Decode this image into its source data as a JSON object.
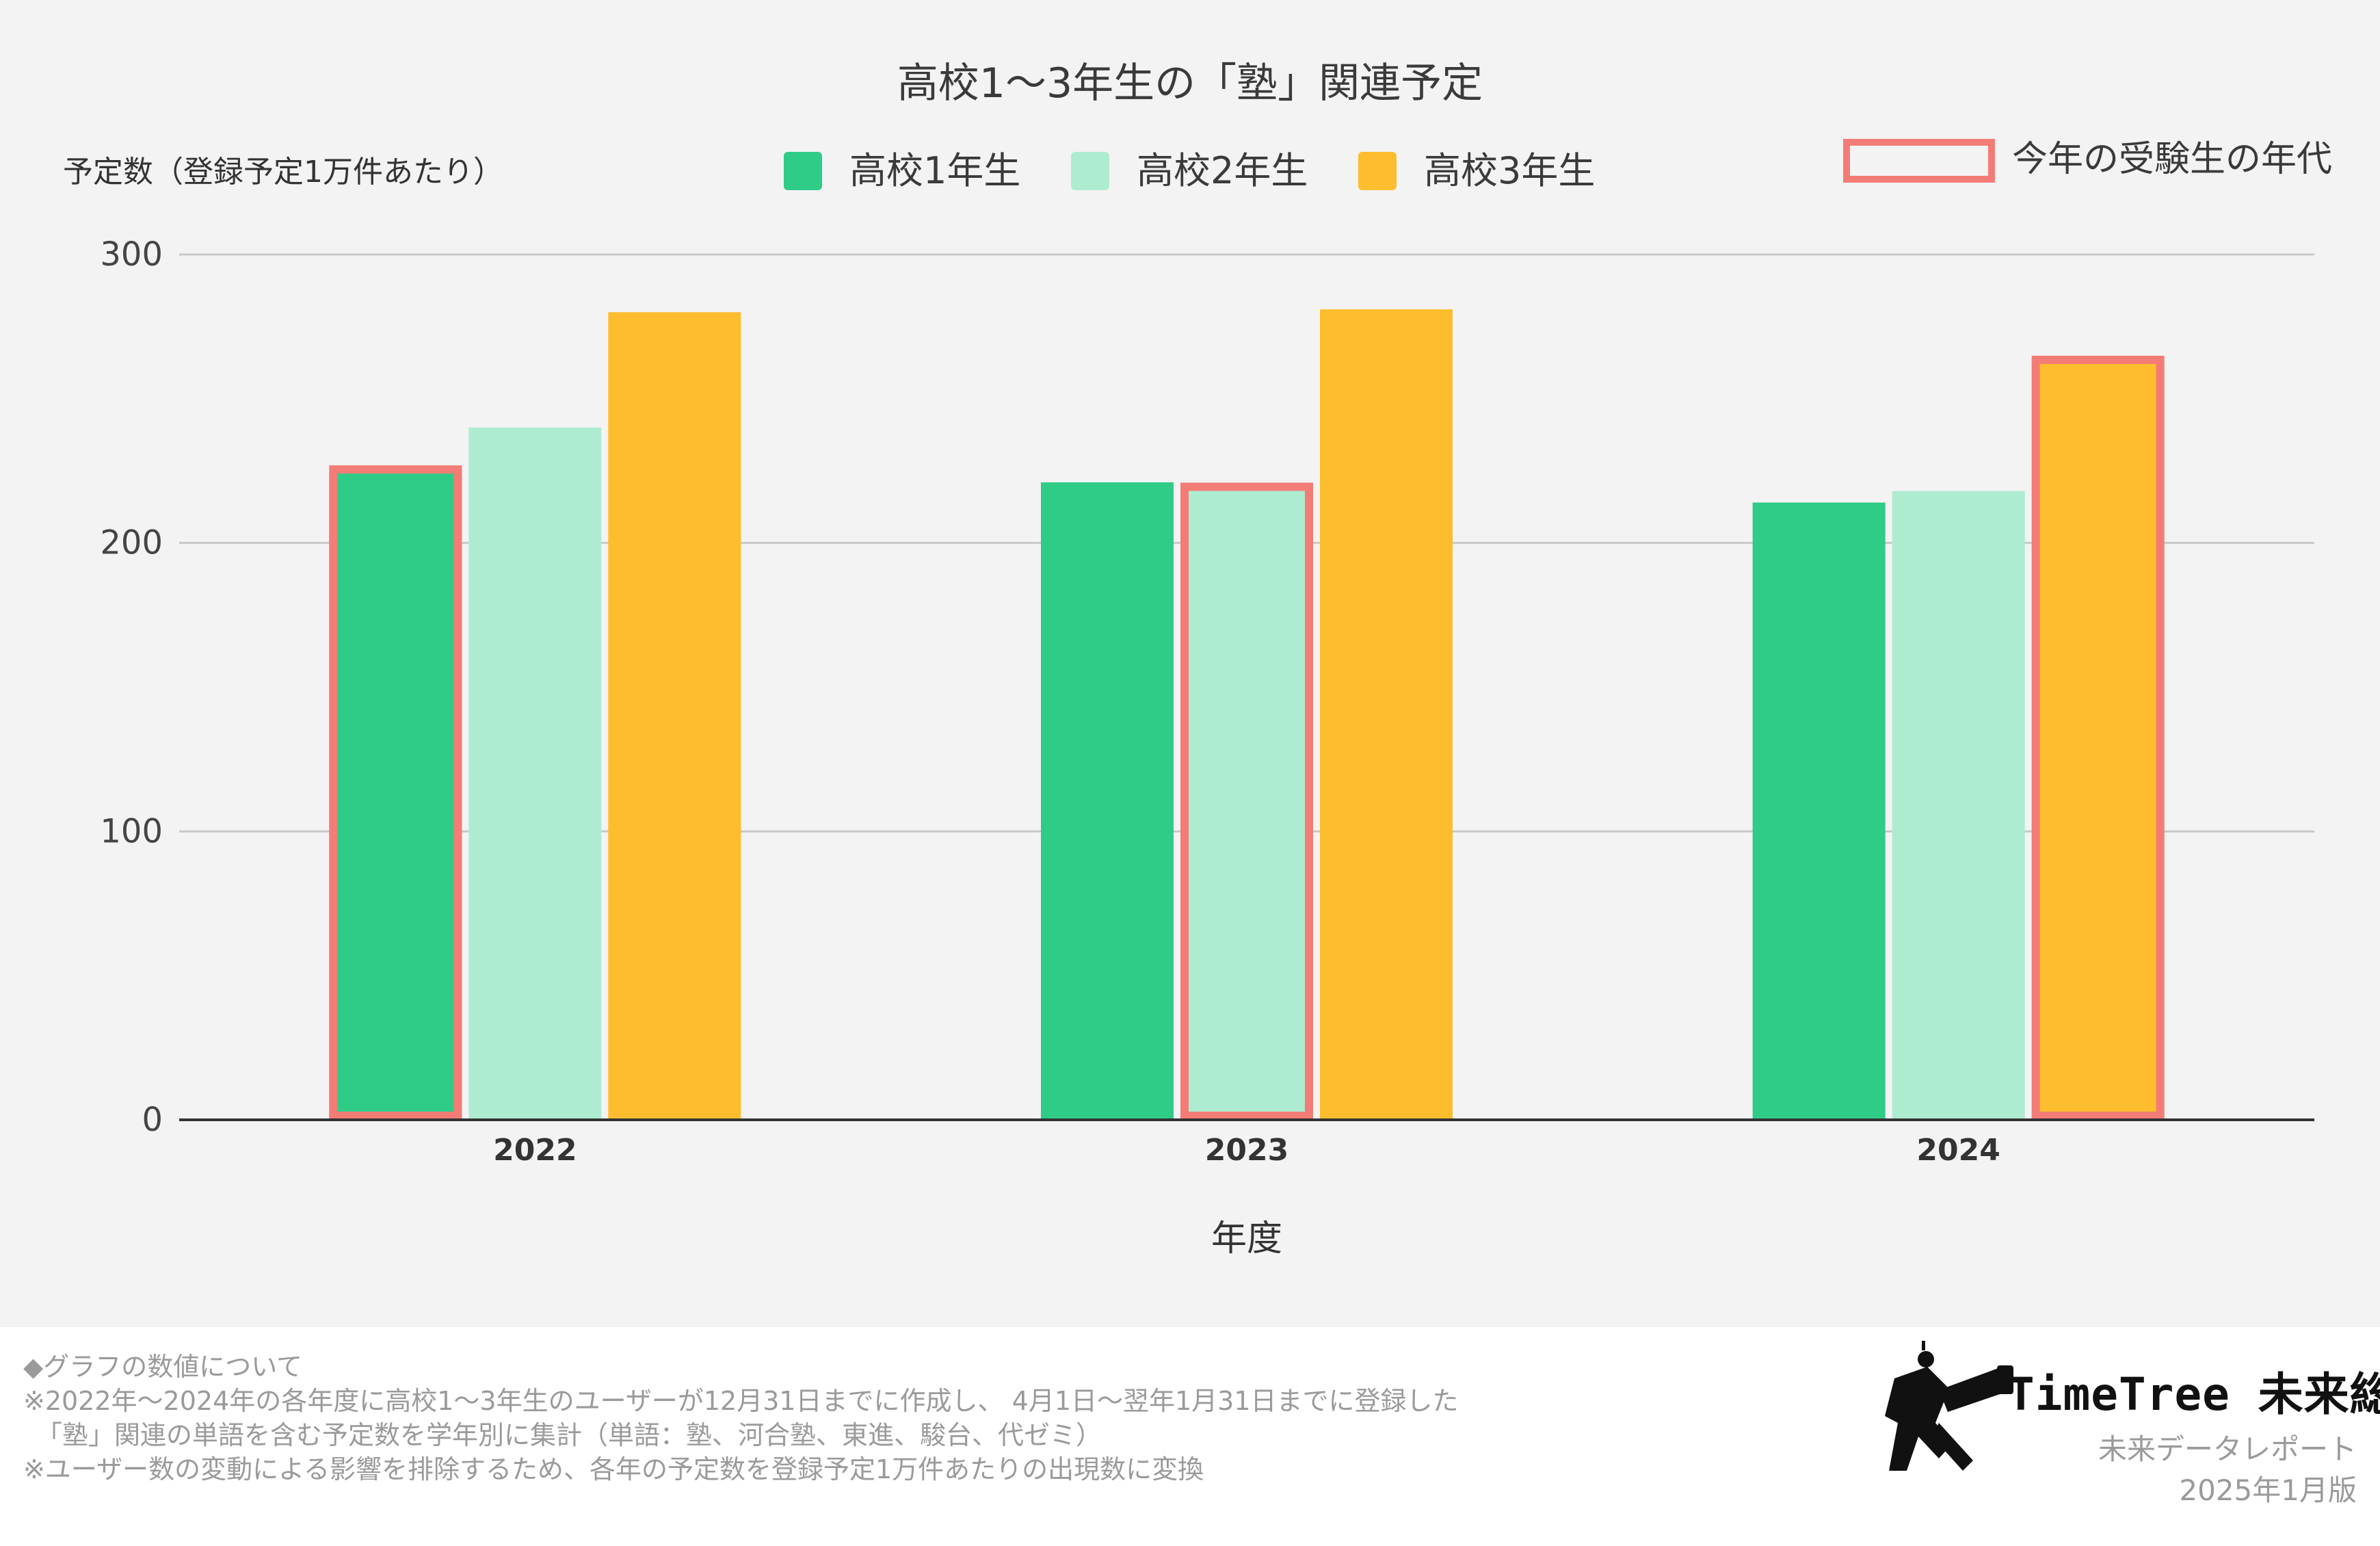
{
  "chart_data": {
    "type": "bar",
    "title": "高校1〜3年生の「塾」関連予定",
    "ylabel": "予定数（登録予定1万件あたり）",
    "xlabel": "年度",
    "categories": [
      "2022",
      "2023",
      "2024"
    ],
    "series": [
      {
        "name": "高校1年生",
        "color": "#2ecc87",
        "values": [
          225,
          221,
          214
        ]
      },
      {
        "name": "高校2年生",
        "color": "#aeecd1",
        "values": [
          240,
          219,
          218
        ]
      },
      {
        "name": "高校3年生",
        "color": "#fdbd2e",
        "values": [
          280,
          281,
          263
        ]
      }
    ],
    "highlighted_bars": [
      {
        "category": "2022",
        "series": "高校1年生"
      },
      {
        "category": "2023",
        "series": "高校2年生"
      },
      {
        "category": "2024",
        "series": "高校3年生"
      }
    ],
    "highlight_color": "#f47c76",
    "highlight_legend_label": "今年の受験生の年代",
    "ylim": [
      0,
      300
    ],
    "yticks": [
      0,
      100,
      200,
      300
    ],
    "grid": true,
    "legend_position": "top"
  },
  "footer": {
    "notes": [
      "◆グラフの数値について",
      "※2022年〜2024年の各年度に高校1〜3年生のユーザーが12月31日までに作成し、 4月1日〜翌年1月31日までに登録した",
      "　「塾」関連の単語を含む予定数を学年別に集計（単語：塾、河合塾、東進、駿台、代ゼミ）",
      "※ユーザー数の変動による影響を排除するため、各年の予定数を登録予定1万件あたりの出現数に変換"
    ],
    "brand": "TimeTree 未来総研",
    "subtitle": "未来データレポート",
    "edition": "2025年1月版"
  }
}
